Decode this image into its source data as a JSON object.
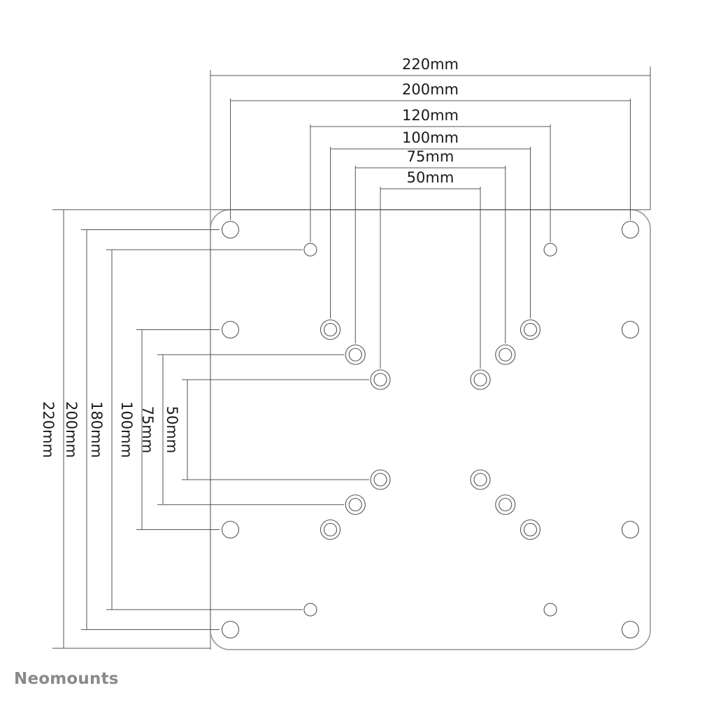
{
  "brand": {
    "logo_text": "Neomounts",
    "color": "#8a8a8a"
  },
  "plate": {
    "size_mm": 220
  },
  "hole_patterns": [
    {
      "name": "corner",
      "h_mm": 200,
      "v_mm": 200,
      "type": "single-large"
    },
    {
      "name": "edge",
      "h_mm": 200,
      "v_mm": 100,
      "type": "single-large"
    },
    {
      "name": "small",
      "h_mm": 120,
      "v_mm": 180,
      "type": "single-small"
    },
    {
      "name": "vesa100",
      "h_mm": 100,
      "v_mm": 100,
      "type": "double-ring"
    },
    {
      "name": "vesa75",
      "h_mm": 75,
      "v_mm": 75,
      "type": "double-ring"
    },
    {
      "name": "vesa50",
      "h_mm": 50,
      "v_mm": 50,
      "type": "double-ring"
    }
  ],
  "horizontal_dimensions": [
    {
      "mm": 220,
      "label": "220mm"
    },
    {
      "mm": 200,
      "label": "200mm"
    },
    {
      "mm": 120,
      "label": "120mm"
    },
    {
      "mm": 100,
      "label": "100mm"
    },
    {
      "mm": 75,
      "label": "75mm"
    },
    {
      "mm": 50,
      "label": "50mm"
    }
  ],
  "vertical_dimensions": [
    {
      "mm": 220,
      "label": "220mm"
    },
    {
      "mm": 200,
      "label": "200mm"
    },
    {
      "mm": 180,
      "label": "180mm"
    },
    {
      "mm": 100,
      "label": "100mm"
    },
    {
      "mm": 75,
      "label": "75mm"
    },
    {
      "mm": 50,
      "label": "50mm"
    }
  ],
  "colors": {
    "line": "#555555",
    "plate": "#9a9a9a"
  }
}
